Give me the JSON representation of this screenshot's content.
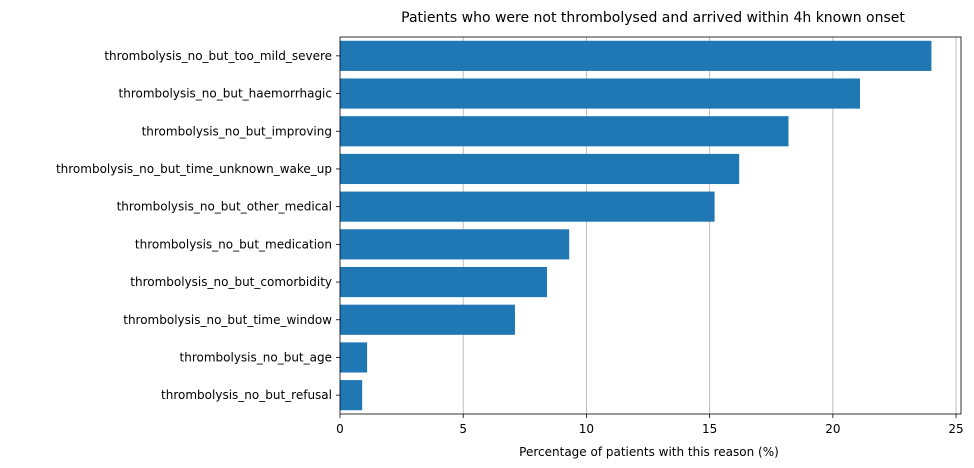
{
  "chart_data": {
    "type": "bar",
    "orientation": "horizontal",
    "title": "Patients who were not thrombolysed and arrived within 4h known onset",
    "xlabel": "Percentage of patients with this reason (%)",
    "ylabel": "",
    "xlim": [
      0,
      25.2
    ],
    "xticks": [
      0,
      5,
      10,
      15,
      20,
      25
    ],
    "grid": "x",
    "bar_color": "#1f77b4",
    "categories": [
      "thrombolysis_no_but_too_mild_severe",
      "thrombolysis_no_but_haemorrhagic",
      "thrombolysis_no_but_improving",
      "thrombolysis_no_but_time_unknown_wake_up",
      "thrombolysis_no_but_other_medical",
      "thrombolysis_no_but_medication",
      "thrombolysis_no_but_comorbidity",
      "thrombolysis_no_but_time_window",
      "thrombolysis_no_but_age",
      "thrombolysis_no_but_refusal"
    ],
    "values": [
      24.0,
      21.1,
      18.2,
      16.2,
      15.2,
      9.3,
      8.4,
      7.1,
      1.1,
      0.9
    ]
  }
}
